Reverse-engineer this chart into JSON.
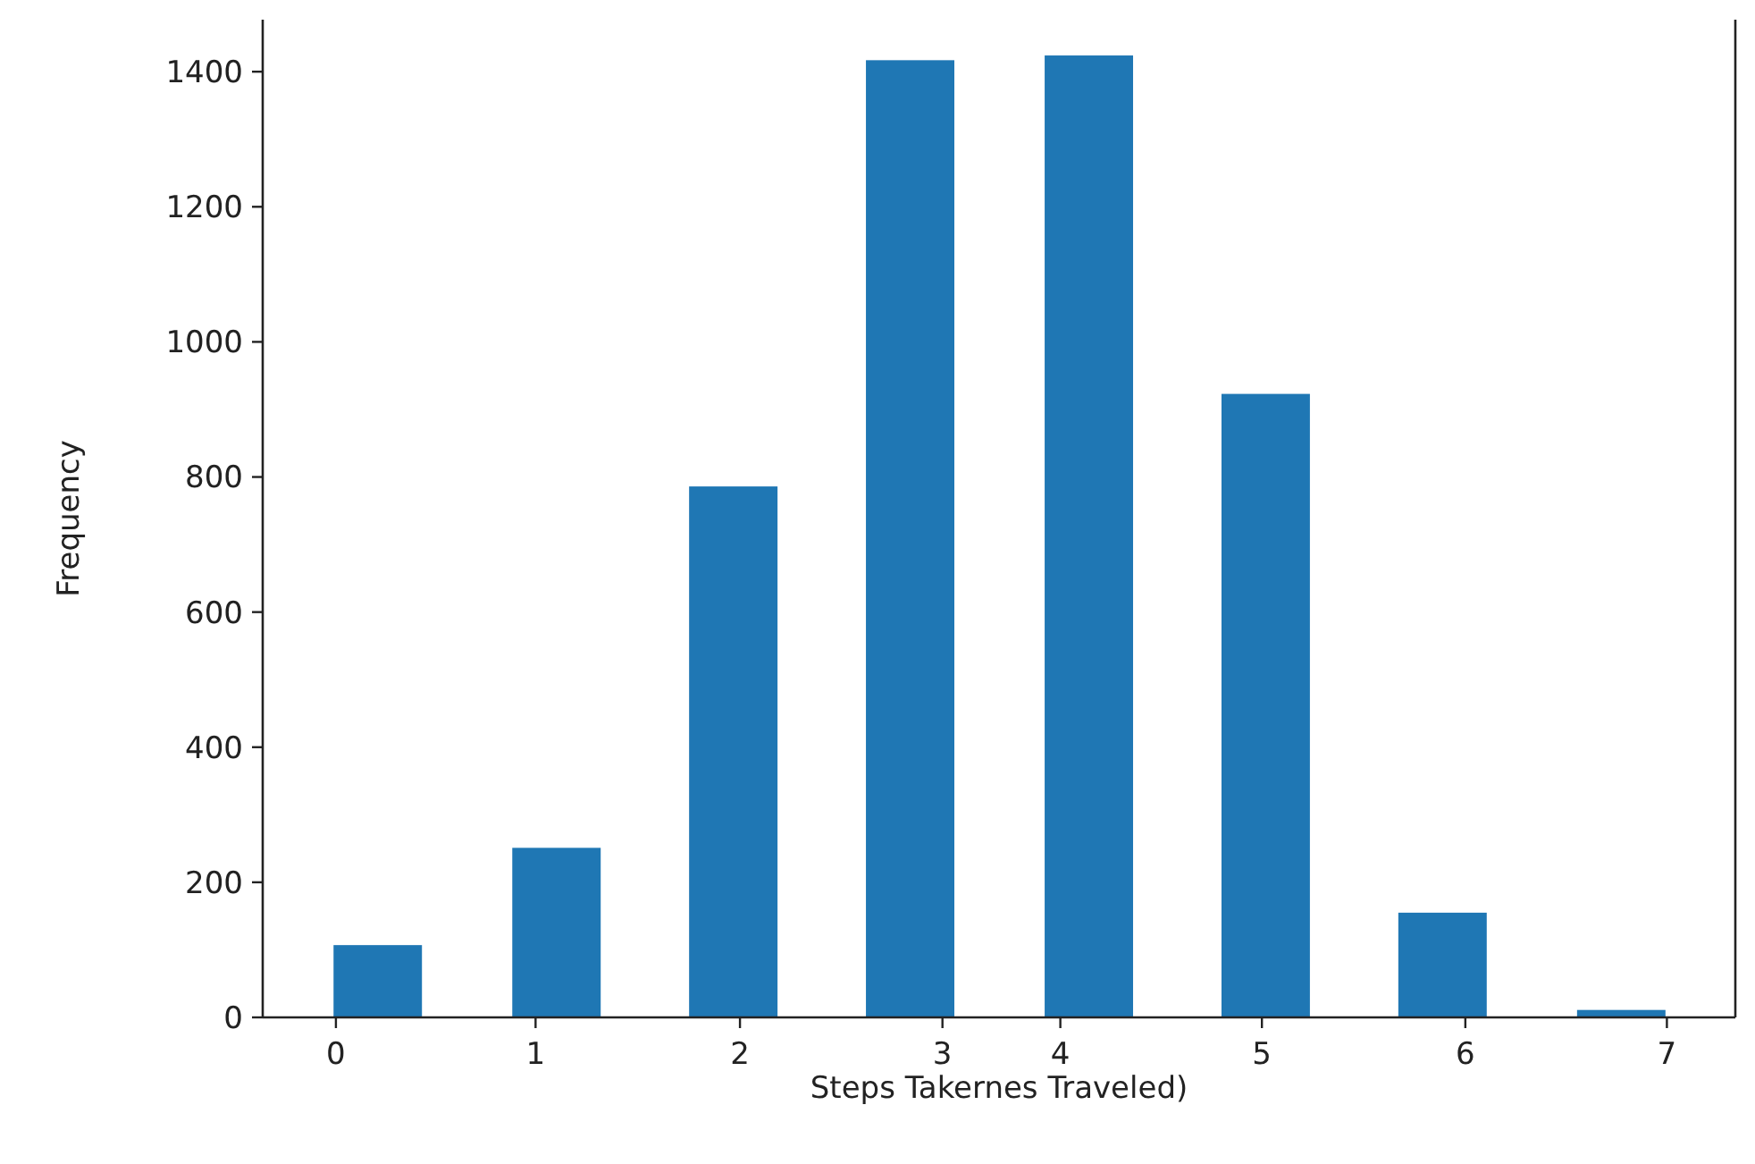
{
  "chart_data": {
    "type": "bar",
    "xlabel": "Steps Takernes Traveled)",
    "ylabel": "Frequency",
    "x": [
      0.22,
      1.16,
      2.09,
      3.02,
      3.96,
      4.89,
      5.82,
      6.76
    ],
    "values": [
      107,
      251,
      786,
      1417,
      1424,
      923,
      155,
      11
    ],
    "color": "#1f77b4",
    "xlim": [
      -0.385,
      7.36
    ],
    "xticks": [
      0,
      {
        "value": 1.05,
        "label": "1"
      },
      {
        "value": 2.125,
        "label": "2"
      },
      {
        "value": 3.19,
        "label": "3"
      },
      {
        "value": 3.81,
        "label": "4"
      },
      {
        "value": 4.87,
        "label": "5"
      },
      {
        "value": 5.94,
        "label": "6"
      },
      7
    ],
    "ylim": [
      0,
      1477
    ],
    "yticks": [
      0,
      200,
      400,
      600,
      800,
      1000,
      1200,
      1400
    ],
    "grid": false
  }
}
